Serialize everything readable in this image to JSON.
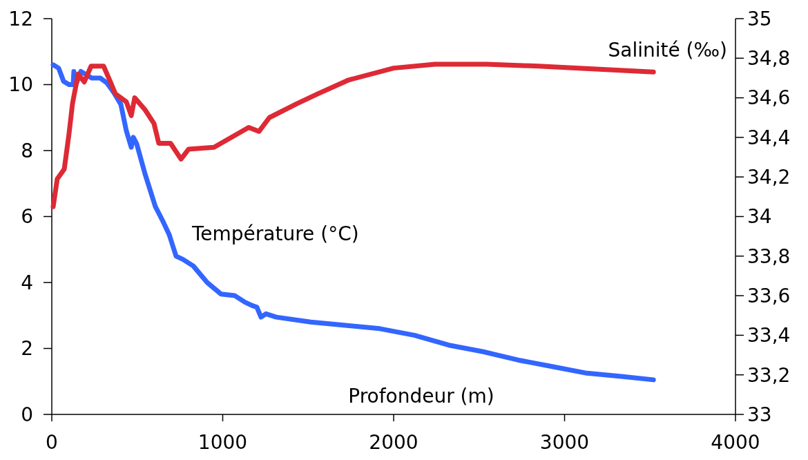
{
  "chart_data": {
    "type": "line",
    "xlabel": "Profondeur (m)",
    "xlim": [
      0,
      4000
    ],
    "xticks": [
      0,
      1000,
      2000,
      3000,
      4000
    ],
    "ylim": [
      0,
      12
    ],
    "yticks": [
      0,
      2,
      4,
      6,
      8,
      10,
      12
    ],
    "y2lim": [
      33,
      35
    ],
    "y2ticks": [
      33,
      {
        "value": 33.2,
        "label": "33,2"
      },
      {
        "value": 33.4,
        "label": "33,4"
      },
      {
        "value": 33.6,
        "label": "33,6"
      },
      {
        "value": 33.8,
        "label": "33,8"
      },
      34,
      {
        "value": 34.2,
        "label": "34,2"
      },
      {
        "value": 34.4,
        "label": "34,4"
      },
      {
        "value": 34.6,
        "label": "34,6"
      },
      {
        "value": 34.8,
        "label": "34,8"
      },
      35
    ],
    "grid": false,
    "legend": false,
    "marker": "none",
    "line_style": "solid",
    "series": [
      {
        "name": "Température (°C)",
        "color": "#3366ff",
        "x": [
          8,
          40,
          69,
          101,
          125,
          129,
          141,
          170,
          234,
          283,
          323,
          364,
          404,
          436,
          465,
          477,
          497,
          545,
          606,
          646,
          687,
          727,
          768,
          828,
          909,
          990,
          1071,
          1131,
          1172,
          1200,
          1224,
          1253,
          1313,
          1515,
          1717,
          1919,
          2121,
          2323,
          2525,
          2727,
          2929,
          3131,
          3333,
          3520
        ],
        "values": [
          10.6,
          10.5,
          10.1,
          10.0,
          10.0,
          10.4,
          10.0,
          10.4,
          10.2,
          10.2,
          10.05,
          9.75,
          9.4,
          8.6,
          8.1,
          8.4,
          8.2,
          7.3,
          6.3,
          5.9,
          5.45,
          4.8,
          4.7,
          4.5,
          4.0,
          3.65,
          3.6,
          3.4,
          3.3,
          3.25,
          2.95,
          3.05,
          2.95,
          2.8,
          2.7,
          2.6,
          2.4,
          2.1,
          1.9,
          1.65,
          1.45,
          1.25,
          1.15,
          1.05
        ]
      },
      {
        "name": "Salinité (‰)",
        "color": "#dd2a35",
        "axis": "y2",
        "x": [
          8,
          32,
          73,
          101,
          121,
          154,
          190,
          230,
          303,
          343,
          372,
          436,
          465,
          485,
          545,
          598,
          626,
          695,
          756,
          800,
          949,
          1071,
          1152,
          1212,
          1273,
          1434,
          1556,
          1737,
          2000,
          2242,
          2545,
          2848,
          3520
        ],
        "values": [
          34.05,
          34.19,
          34.24,
          34.42,
          34.57,
          34.72,
          34.68,
          34.76,
          34.76,
          34.68,
          34.62,
          34.58,
          34.51,
          34.6,
          34.54,
          34.47,
          34.37,
          34.37,
          34.29,
          34.34,
          34.35,
          34.41,
          34.45,
          34.43,
          34.5,
          34.57,
          34.62,
          34.69,
          34.75,
          34.77,
          34.77,
          34.76,
          34.73
        ]
      }
    ]
  }
}
